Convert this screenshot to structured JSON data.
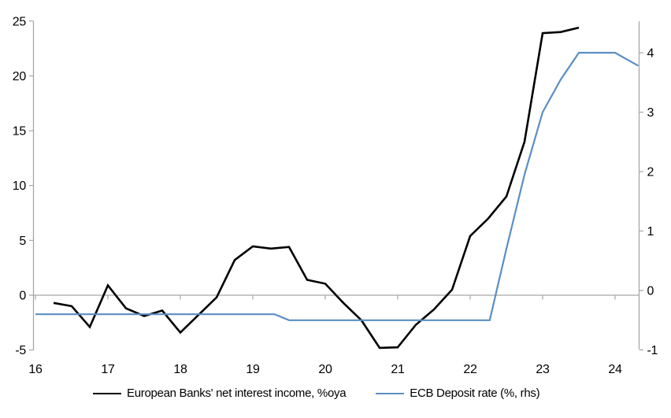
{
  "chart_data": {
    "type": "line",
    "title": "",
    "x_axis": {
      "ticks": [
        16,
        17,
        18,
        19,
        20,
        21,
        22,
        23,
        24
      ],
      "labels": [
        "16",
        "17",
        "18",
        "19",
        "20",
        "21",
        "22",
        "23",
        "24"
      ],
      "range": [
        16,
        24.35
      ]
    },
    "left_axis": {
      "ticks": [
        -5,
        0,
        5,
        10,
        15,
        20,
        25
      ],
      "labels": [
        "-5",
        "0",
        "5",
        "10",
        "15",
        "20",
        "25"
      ],
      "range": [
        -5,
        25
      ]
    },
    "right_axis": {
      "ticks": [
        -1,
        0,
        1,
        2,
        3,
        4
      ],
      "labels": [
        "-1",
        "0",
        "1",
        "2",
        "3",
        "4"
      ],
      "range": [
        -1.05,
        4.55
      ]
    },
    "series": [
      {
        "name": "European Banks' net interest income, %oya",
        "axis": "left",
        "color": "#000000",
        "stroke_width": 2.6,
        "points": [
          [
            16.25,
            -0.7
          ],
          [
            16.5,
            -1.0
          ],
          [
            16.75,
            -2.9
          ],
          [
            17.0,
            0.9
          ],
          [
            17.25,
            -1.2
          ],
          [
            17.5,
            -1.9
          ],
          [
            17.75,
            -1.4
          ],
          [
            18.0,
            -3.4
          ],
          [
            18.25,
            -1.8
          ],
          [
            18.5,
            -0.2
          ],
          [
            18.75,
            3.2
          ],
          [
            19.0,
            4.45
          ],
          [
            19.25,
            4.25
          ],
          [
            19.5,
            4.4
          ],
          [
            19.75,
            1.4
          ],
          [
            20.0,
            1.05
          ],
          [
            20.25,
            -0.7
          ],
          [
            20.5,
            -2.3
          ],
          [
            20.75,
            -4.8
          ],
          [
            21.0,
            -4.75
          ],
          [
            21.25,
            -2.7
          ],
          [
            21.5,
            -1.3
          ],
          [
            21.75,
            0.5
          ],
          [
            22.0,
            5.4
          ],
          [
            22.25,
            7.0
          ],
          [
            22.5,
            9.0
          ],
          [
            22.75,
            14.0
          ],
          [
            23.0,
            23.9
          ],
          [
            23.25,
            24.0
          ],
          [
            23.5,
            24.4
          ]
        ]
      },
      {
        "name": "ECB Deposit rate (%, rhs)",
        "axis": "right",
        "color": "#5b8ec4",
        "stroke_width": 2.2,
        "points": [
          [
            16.0,
            -0.4
          ],
          [
            19.3,
            -0.4
          ],
          [
            19.5,
            -0.5
          ],
          [
            22.27,
            -0.5
          ],
          [
            22.5,
            0.7
          ],
          [
            22.75,
            1.95
          ],
          [
            23.0,
            3.0
          ],
          [
            23.25,
            3.55
          ],
          [
            23.5,
            4.0
          ],
          [
            24.0,
            4.0
          ],
          [
            24.32,
            3.78
          ]
        ]
      }
    ],
    "colors": {
      "axis": "#a6a6a6",
      "zero_line": "#a6a6a6",
      "text": "#000000"
    },
    "grid": "zero-line-only",
    "legend_position": "bottom"
  }
}
